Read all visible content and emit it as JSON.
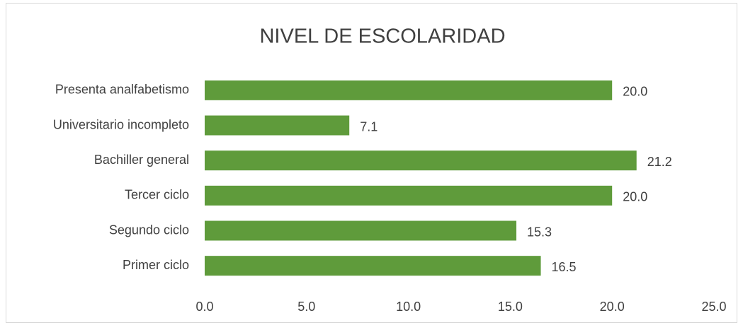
{
  "chart_data": {
    "type": "bar",
    "orientation": "horizontal",
    "title": "NIVEL DE ESCOLARIDAD",
    "categories": [
      "Presenta analfabetismo",
      "Universitario incompleto",
      "Bachiller general",
      "Tercer ciclo",
      "Segundo ciclo",
      "Primer ciclo"
    ],
    "values": [
      20.0,
      7.1,
      21.2,
      20.0,
      15.3,
      16.5
    ],
    "value_labels": [
      "20.0",
      "7.1",
      "21.2",
      "20.0",
      "15.3",
      "16.5"
    ],
    "color": "#5f9b3b",
    "xlim": [
      0,
      25
    ],
    "xticks": [
      {
        "value": 0,
        "label": "0.0"
      },
      {
        "value": 5,
        "label": "5.0"
      },
      {
        "value": 10,
        "label": "10.0"
      },
      {
        "value": 15,
        "label": "15.0"
      },
      {
        "value": 20,
        "label": "20.0"
      },
      {
        "value": 25,
        "label": "25.0"
      }
    ],
    "grid": false
  }
}
